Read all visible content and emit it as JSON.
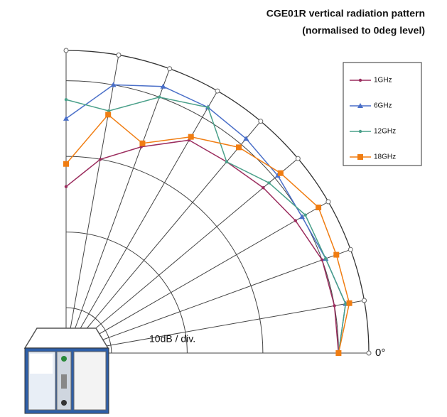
{
  "chart_data": {
    "type": "polar",
    "title": "CGE01R vertical radiation pattern",
    "subtitle": "(normalised to 0deg level)",
    "theta": [
      0,
      10,
      20,
      30,
      40,
      50,
      60,
      70,
      80,
      90
    ],
    "rlim": [
      -36,
      4
    ],
    "rticks": [
      -30,
      -20,
      -10,
      0
    ],
    "thetaticks": [
      0,
      10,
      20,
      30,
      40,
      50,
      60,
      70,
      80,
      90
    ],
    "annotations": [
      "10dB / div.",
      "0°"
    ],
    "legend": "top-right",
    "series": [
      {
        "name": "1GHz",
        "color": "#9b2d5e",
        "marker": "dot",
        "values": [
          0,
          0,
          0,
          -1,
          -2,
          -3,
          -3.5,
          -7,
          -10,
          -14
        ]
      },
      {
        "name": "6GHz",
        "color": "#4a6fc8",
        "marker": "triangle",
        "values": [
          0,
          1.5,
          0.5,
          0,
          0.5,
          1,
          1.5,
          1.5,
          0,
          -5
        ]
      },
      {
        "name": "12GHz",
        "color": "#4aa08a",
        "marker": "dot",
        "values": [
          0,
          1.5,
          0.5,
          0.5,
          -1,
          -3,
          1.5,
          0,
          -3.5,
          -2.5
        ]
      },
      {
        "name": "18GHz",
        "color": "#f07d12",
        "marker": "square",
        "values": [
          0,
          2,
          2,
          2.5,
          1,
          -0.5,
          -3,
          -6.5,
          -4,
          -11
        ]
      }
    ]
  }
}
